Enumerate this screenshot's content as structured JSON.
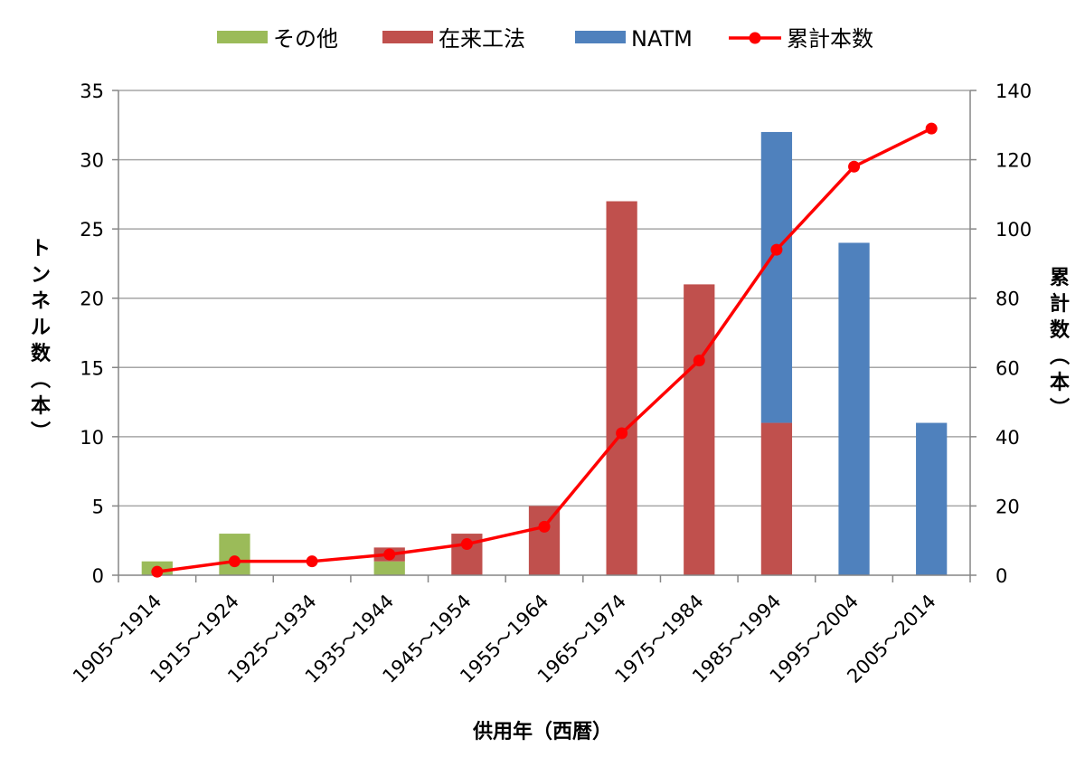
{
  "chart_data": {
    "type": "bar",
    "stacked": true,
    "xlabel": "供用年（西暦）",
    "ylabel_left": "トンネル数（本）",
    "ylabel_right": "累計数（本）",
    "ylim_left": [
      0,
      35
    ],
    "ylim_right": [
      0,
      140
    ],
    "yticks_left": [
      0,
      5,
      10,
      15,
      20,
      25,
      30,
      35
    ],
    "yticks_right": [
      0,
      20,
      40,
      60,
      80,
      100,
      120,
      140
    ],
    "grid": true,
    "legend_position": "top",
    "categories": [
      "1905～1914",
      "1915～1924",
      "1925～1934",
      "1935～1944",
      "1945～1954",
      "1955～1964",
      "1965～1974",
      "1975～1984",
      "1985～1994",
      "1995～2004",
      "2005～2014"
    ],
    "series": [
      {
        "name": "その他",
        "type": "bar",
        "axis": "left",
        "color": "#9BBB59",
        "values": [
          1,
          3,
          0,
          1,
          0,
          0,
          0,
          0,
          0,
          0,
          0
        ]
      },
      {
        "name": "在来工法",
        "type": "bar",
        "axis": "left",
        "color": "#C0504D",
        "values": [
          0,
          0,
          0,
          1,
          3,
          5,
          27,
          21,
          11,
          0,
          0
        ]
      },
      {
        "name": "NATM",
        "type": "bar",
        "axis": "left",
        "color": "#4F81BD",
        "values": [
          0,
          0,
          0,
          0,
          0,
          0,
          0,
          0,
          21,
          24,
          11
        ]
      },
      {
        "name": "累計本数",
        "type": "line",
        "axis": "right",
        "color": "#FF0000",
        "values": [
          1,
          4,
          4,
          6,
          9,
          14,
          41,
          62,
          94,
          118,
          129
        ]
      }
    ]
  }
}
